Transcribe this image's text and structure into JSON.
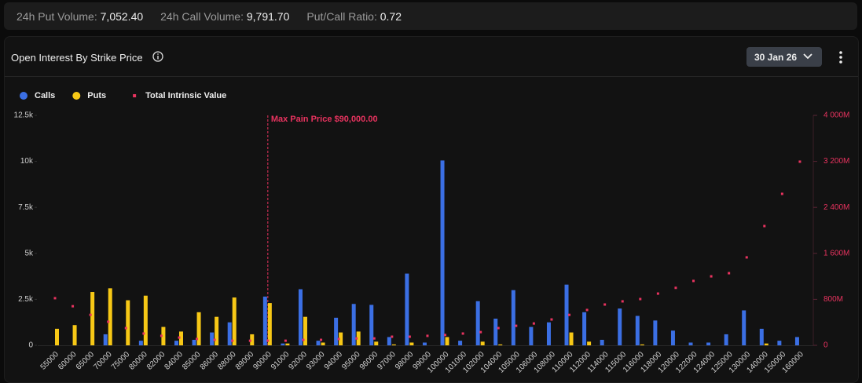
{
  "header": {
    "stats": [
      {
        "label": "24h Put Volume:",
        "value": "7,052.40"
      },
      {
        "label": "24h Call Volume:",
        "value": "9,791.70"
      },
      {
        "label": "Put/Call Ratio:",
        "value": "0.72"
      }
    ]
  },
  "card": {
    "title": "Open Interest By Strike Price",
    "expiry": "30 Jan 26"
  },
  "chart_data": {
    "type": "bar",
    "categories": [
      "55000",
      "60000",
      "65000",
      "70000",
      "75000",
      "80000",
      "82000",
      "84000",
      "85000",
      "86000",
      "88000",
      "89000",
      "90000",
      "91000",
      "92000",
      "93000",
      "94000",
      "95000",
      "96000",
      "97000",
      "98000",
      "99000",
      "100000",
      "101000",
      "102000",
      "104000",
      "105000",
      "106000",
      "108000",
      "110000",
      "112000",
      "114000",
      "115000",
      "116000",
      "118000",
      "120000",
      "122000",
      "124000",
      "125000",
      "130000",
      "140000",
      "150000",
      "160000"
    ],
    "series": [
      {
        "name": "Calls",
        "color": "#3b6fe4",
        "values": [
          0,
          0,
          0,
          600,
          0,
          250,
          0,
          250,
          300,
          700,
          1250,
          0,
          2650,
          100,
          3050,
          250,
          1500,
          2250,
          2200,
          450,
          3900,
          150,
          10050,
          250,
          2400,
          1450,
          3000,
          1000,
          1250,
          3300,
          1800,
          300,
          2000,
          1600,
          1350,
          800,
          150,
          150,
          600,
          1900,
          900,
          250,
          450
        ]
      },
      {
        "name": "Puts",
        "color": "#f7c816",
        "values": [
          900,
          1100,
          2900,
          3100,
          2450,
          2700,
          1000,
          750,
          1800,
          1550,
          2600,
          600,
          2300,
          100,
          1550,
          150,
          700,
          750,
          200,
          50,
          150,
          0,
          450,
          0,
          200,
          50,
          0,
          0,
          0,
          700,
          200,
          0,
          0,
          50,
          0,
          0,
          0,
          0,
          0,
          0,
          100,
          0,
          0
        ]
      },
      {
        "name": "Total Intrinsic Value",
        "color": "#e8335f",
        "type": "scatter",
        "axis": "y2",
        "values": [
          820,
          680,
          530,
          410,
          300,
          205,
          165,
          135,
          110,
          95,
          80,
          80,
          80,
          80,
          95,
          95,
          110,
          120,
          120,
          150,
          150,
          165,
          180,
          205,
          230,
          300,
          340,
          380,
          450,
          530,
          615,
          710,
          765,
          805,
          900,
          1000,
          1120,
          1200,
          1255,
          1530,
          2075,
          2635,
          3195
        ]
      }
    ],
    "ylim": [
      0,
      12500
    ],
    "yticks": [
      0,
      {
        "value": 2500,
        "label": "2.5k"
      },
      {
        "value": 5000,
        "label": "5k"
      },
      {
        "value": 7500,
        "label": "7.5k"
      },
      {
        "value": 10000,
        "label": "10k"
      },
      {
        "value": 12500,
        "label": "12.5k"
      }
    ],
    "y2lim": [
      0,
      4000
    ],
    "y2ticks": [
      0,
      {
        "value": 800,
        "label": "800M"
      },
      {
        "value": 1600,
        "label": "1 600M"
      },
      {
        "value": 2400,
        "label": "2 400M"
      },
      {
        "value": 3200,
        "label": "3 200M"
      },
      {
        "value": 4000,
        "label": "4 000M"
      }
    ],
    "annotation": {
      "text": "Max Pain Price $90,000.00",
      "category": "90000"
    },
    "legend": "top-left",
    "grid": false
  }
}
